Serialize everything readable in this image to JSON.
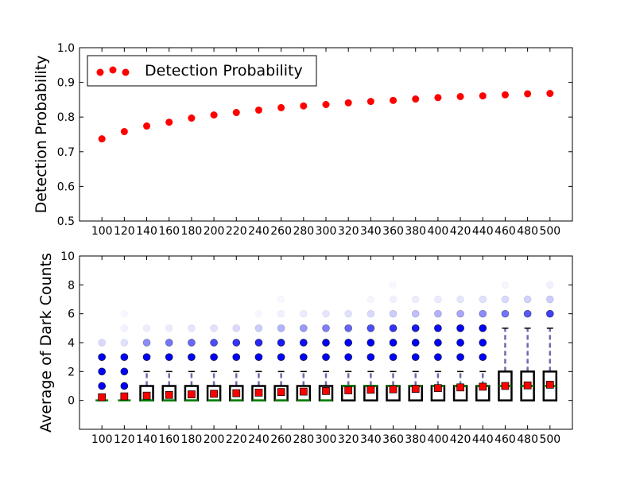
{
  "chart_data": [
    {
      "type": "scatter",
      "ylabel": "Detection Probability",
      "ylim": [
        0.5,
        1.0
      ],
      "yticks": [
        "0.5",
        "0.6",
        "0.7",
        "0.8",
        "0.9",
        "1.0"
      ],
      "x": [
        100,
        120,
        140,
        160,
        180,
        200,
        220,
        240,
        260,
        280,
        300,
        320,
        340,
        360,
        380,
        400,
        420,
        440,
        460,
        480,
        500
      ],
      "series": [
        {
          "name": "Detection Probability",
          "color": "#ff0000",
          "values": [
            0.737,
            0.758,
            0.774,
            0.785,
            0.797,
            0.806,
            0.813,
            0.82,
            0.827,
            0.832,
            0.836,
            0.841,
            0.845,
            0.848,
            0.852,
            0.856,
            0.859,
            0.861,
            0.864,
            0.867,
            0.868
          ]
        }
      ],
      "legend": "upper-left",
      "grid": false
    },
    {
      "type": "box",
      "ylabel": "Average of Dark Counts",
      "ylim": [
        -2,
        10
      ],
      "yticks": [
        "0",
        "2",
        "4",
        "6",
        "8",
        "10"
      ],
      "x": [
        100,
        120,
        140,
        160,
        180,
        200,
        220,
        240,
        260,
        280,
        300,
        320,
        340,
        360,
        380,
        400,
        420,
        440,
        460,
        480,
        500
      ],
      "means": [
        0.22,
        0.28,
        0.33,
        0.38,
        0.42,
        0.46,
        0.5,
        0.54,
        0.58,
        0.61,
        0.65,
        0.7,
        0.74,
        0.77,
        0.8,
        0.85,
        0.9,
        0.95,
        1.0,
        1.04,
        1.09
      ],
      "boxes": [
        {
          "q1": 0,
          "median": 0,
          "q3": 0,
          "whisker_high": 0
        },
        {
          "q1": 0,
          "median": 0,
          "q3": 0,
          "whisker_high": 0
        },
        {
          "q1": 0,
          "median": 0,
          "q3": 1,
          "whisker_high": 2
        },
        {
          "q1": 0,
          "median": 0,
          "q3": 1,
          "whisker_high": 2
        },
        {
          "q1": 0,
          "median": 0,
          "q3": 1,
          "whisker_high": 2
        },
        {
          "q1": 0,
          "median": 0,
          "q3": 1,
          "whisker_high": 2
        },
        {
          "q1": 0,
          "median": 0,
          "q3": 1,
          "whisker_high": 2
        },
        {
          "q1": 0,
          "median": 0,
          "q3": 1,
          "whisker_high": 2
        },
        {
          "q1": 0,
          "median": 0,
          "q3": 1,
          "whisker_high": 2
        },
        {
          "q1": 0,
          "median": 0,
          "q3": 1,
          "whisker_high": 2
        },
        {
          "q1": 0,
          "median": 0,
          "q3": 1,
          "whisker_high": 2
        },
        {
          "q1": 0,
          "median": 1,
          "q3": 1,
          "whisker_high": 2
        },
        {
          "q1": 0,
          "median": 1,
          "q3": 1,
          "whisker_high": 2
        },
        {
          "q1": 0,
          "median": 1,
          "q3": 1,
          "whisker_high": 2
        },
        {
          "q1": 0,
          "median": 1,
          "q3": 1,
          "whisker_high": 2
        },
        {
          "q1": 0,
          "median": 1,
          "q3": 1,
          "whisker_high": 2
        },
        {
          "q1": 0,
          "median": 1,
          "q3": 1,
          "whisker_high": 2
        },
        {
          "q1": 0,
          "median": 1,
          "q3": 1,
          "whisker_high": 2
        },
        {
          "q1": 0,
          "median": 1,
          "q3": 2,
          "whisker_high": 5
        },
        {
          "q1": 0,
          "median": 1,
          "q3": 2,
          "whisker_high": 5
        },
        {
          "q1": 0,
          "median": 1,
          "q3": 2,
          "whisker_high": 5
        }
      ],
      "outliers": [
        {
          "x": 100,
          "points": [
            {
              "y": 1,
              "a": 1
            },
            {
              "y": 2,
              "a": 1
            },
            {
              "y": 3,
              "a": 1
            },
            {
              "y": 4,
              "a": 0.15
            }
          ]
        },
        {
          "x": 120,
          "points": [
            {
              "y": 1,
              "a": 1
            },
            {
              "y": 2,
              "a": 1
            },
            {
              "y": 3,
              "a": 1
            },
            {
              "y": 4,
              "a": 0.12
            },
            {
              "y": 5,
              "a": 0.05
            },
            {
              "y": 6,
              "a": 0.03
            }
          ]
        },
        {
          "x": 140,
          "points": [
            {
              "y": 3,
              "a": 1
            },
            {
              "y": 4,
              "a": 0.45
            },
            {
              "y": 5,
              "a": 0.07
            }
          ]
        },
        {
          "x": 160,
          "points": [
            {
              "y": 3,
              "a": 1
            },
            {
              "y": 4,
              "a": 0.55
            },
            {
              "y": 5,
              "a": 0.08
            }
          ]
        },
        {
          "x": 180,
          "points": [
            {
              "y": 3,
              "a": 1
            },
            {
              "y": 4,
              "a": 0.6
            },
            {
              "y": 5,
              "a": 0.1
            }
          ]
        },
        {
          "x": 200,
          "points": [
            {
              "y": 3,
              "a": 1
            },
            {
              "y": 4,
              "a": 0.7
            },
            {
              "y": 5,
              "a": 0.12
            }
          ]
        },
        {
          "x": 220,
          "points": [
            {
              "y": 3,
              "a": 1
            },
            {
              "y": 4,
              "a": 0.8
            },
            {
              "y": 5,
              "a": 0.15
            }
          ]
        },
        {
          "x": 240,
          "points": [
            {
              "y": 3,
              "a": 1
            },
            {
              "y": 4,
              "a": 0.85
            },
            {
              "y": 5,
              "a": 0.2
            },
            {
              "y": 6,
              "a": 0.03
            }
          ]
        },
        {
          "x": 260,
          "points": [
            {
              "y": 3,
              "a": 1
            },
            {
              "y": 4,
              "a": 0.9
            },
            {
              "y": 5,
              "a": 0.3
            },
            {
              "y": 6,
              "a": 0.06
            },
            {
              "y": 7,
              "a": 0.03
            }
          ]
        },
        {
          "x": 280,
          "points": [
            {
              "y": 3,
              "a": 1
            },
            {
              "y": 4,
              "a": 0.95
            },
            {
              "y": 5,
              "a": 0.4
            },
            {
              "y": 6,
              "a": 0.08
            }
          ]
        },
        {
          "x": 300,
          "points": [
            {
              "y": 3,
              "a": 1
            },
            {
              "y": 4,
              "a": 1
            },
            {
              "y": 5,
              "a": 0.5
            },
            {
              "y": 6,
              "a": 0.1
            }
          ]
        },
        {
          "x": 320,
          "points": [
            {
              "y": 3,
              "a": 1
            },
            {
              "y": 4,
              "a": 1
            },
            {
              "y": 5,
              "a": 0.6
            },
            {
              "y": 6,
              "a": 0.12
            }
          ]
        },
        {
          "x": 340,
          "points": [
            {
              "y": 3,
              "a": 1
            },
            {
              "y": 4,
              "a": 1
            },
            {
              "y": 5,
              "a": 0.7
            },
            {
              "y": 6,
              "a": 0.15
            },
            {
              "y": 7,
              "a": 0.04
            }
          ]
        },
        {
          "x": 360,
          "points": [
            {
              "y": 3,
              "a": 1
            },
            {
              "y": 4,
              "a": 1
            },
            {
              "y": 5,
              "a": 0.8
            },
            {
              "y": 6,
              "a": 0.2
            },
            {
              "y": 7,
              "a": 0.06
            },
            {
              "y": 8,
              "a": 0.03
            }
          ]
        },
        {
          "x": 380,
          "points": [
            {
              "y": 3,
              "a": 1
            },
            {
              "y": 4,
              "a": 1
            },
            {
              "y": 5,
              "a": 0.9
            },
            {
              "y": 6,
              "a": 0.25
            },
            {
              "y": 7,
              "a": 0.07
            }
          ]
        },
        {
          "x": 400,
          "points": [
            {
              "y": 3,
              "a": 1
            },
            {
              "y": 4,
              "a": 1
            },
            {
              "y": 5,
              "a": 0.95
            },
            {
              "y": 6,
              "a": 0.3
            },
            {
              "y": 7,
              "a": 0.08
            }
          ]
        },
        {
          "x": 420,
          "points": [
            {
              "y": 3,
              "a": 1
            },
            {
              "y": 4,
              "a": 1
            },
            {
              "y": 5,
              "a": 1
            },
            {
              "y": 6,
              "a": 0.35
            },
            {
              "y": 7,
              "a": 0.1
            }
          ]
        },
        {
          "x": 440,
          "points": [
            {
              "y": 3,
              "a": 1
            },
            {
              "y": 4,
              "a": 1
            },
            {
              "y": 5,
              "a": 1
            },
            {
              "y": 6,
              "a": 0.45
            },
            {
              "y": 7,
              "a": 0.12
            }
          ]
        },
        {
          "x": 460,
          "points": [
            {
              "y": 6,
              "a": 0.55
            },
            {
              "y": 7,
              "a": 0.15
            },
            {
              "y": 8,
              "a": 0.04
            }
          ]
        },
        {
          "x": 480,
          "points": [
            {
              "y": 6,
              "a": 0.65
            },
            {
              "y": 7,
              "a": 0.18
            }
          ]
        },
        {
          "x": 500,
          "points": [
            {
              "y": 6,
              "a": 0.75
            },
            {
              "y": 7,
              "a": 0.2
            },
            {
              "y": 8,
              "a": 0.06
            }
          ]
        }
      ],
      "colors": {
        "box": "#000000",
        "median": "#008000",
        "whisker": "#6b6bb0",
        "mean": "#ff0000",
        "outlier": "#0000ff"
      },
      "grid": false
    }
  ]
}
